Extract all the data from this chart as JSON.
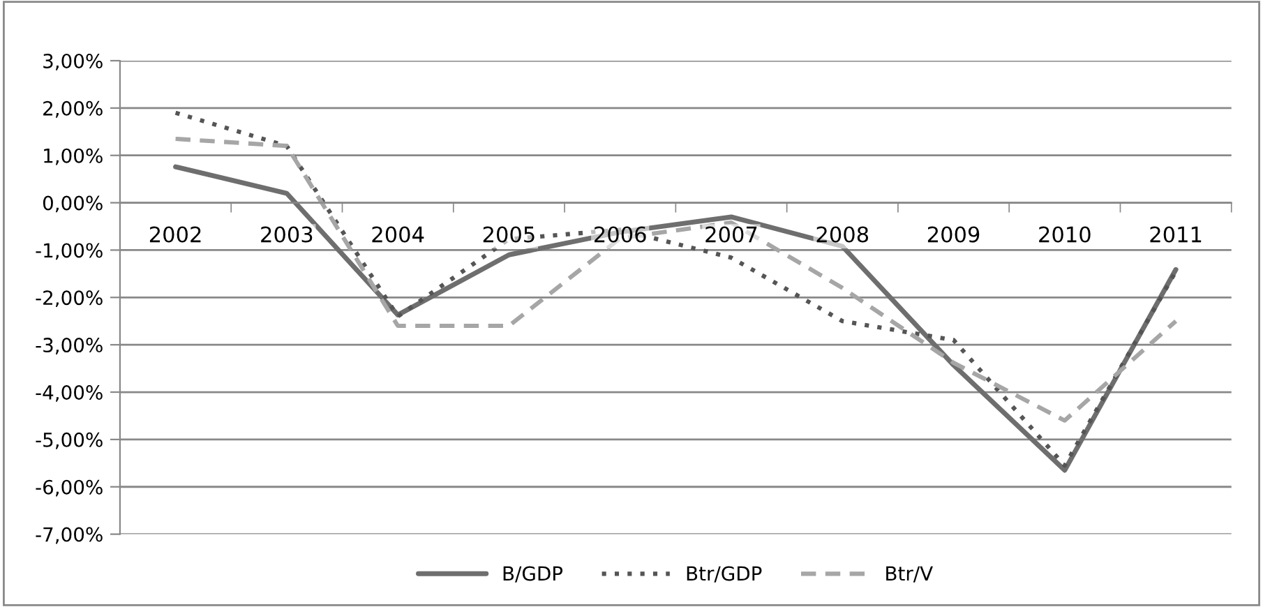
{
  "chart_data": {
    "type": "line",
    "categories": [
      "2002",
      "2003",
      "2004",
      "2005",
      "2006",
      "2007",
      "2008",
      "2009",
      "2010",
      "2011"
    ],
    "series": [
      {
        "name": "B/GDP",
        "color": "#6e6e6e",
        "line_style": "solid",
        "values": [
          0.76,
          0.2,
          -2.37,
          -1.1,
          -0.62,
          -0.3,
          -0.92,
          -3.43,
          -5.65,
          -1.41
        ]
      },
      {
        "name": "Btr/GDP",
        "color": "#555555",
        "line_style": "dotted",
        "values": [
          1.9,
          1.2,
          -2.4,
          -0.77,
          -0.57,
          -1.16,
          -2.5,
          -2.9,
          -5.55,
          -1.45
        ]
      },
      {
        "name": "Btr/V",
        "color": "#a6a6a6",
        "line_style": "dashed",
        "values": [
          1.35,
          1.2,
          -2.6,
          -2.6,
          -0.75,
          -0.42,
          -1.8,
          -3.38,
          -4.6,
          -2.5
        ]
      }
    ],
    "ylim": [
      -7,
      3
    ],
    "yticks": [
      {
        "value": 3,
        "label": "3,00%"
      },
      {
        "value": 2,
        "label": "2,00%"
      },
      {
        "value": 1,
        "label": "1,00%"
      },
      {
        "value": 0,
        "label": "0,00%"
      },
      {
        "value": -1,
        "label": "-1,00%"
      },
      {
        "value": -2,
        "label": "-2,00%"
      },
      {
        "value": -3,
        "label": "-3,00%"
      },
      {
        "value": -4,
        "label": "-4,00%"
      },
      {
        "value": -5,
        "label": "-5,00%"
      },
      {
        "value": -6,
        "label": "-6,00%"
      },
      {
        "value": -7,
        "label": "-7,00%"
      }
    ],
    "grid": "y",
    "legend": "bottom",
    "marker": "none"
  }
}
